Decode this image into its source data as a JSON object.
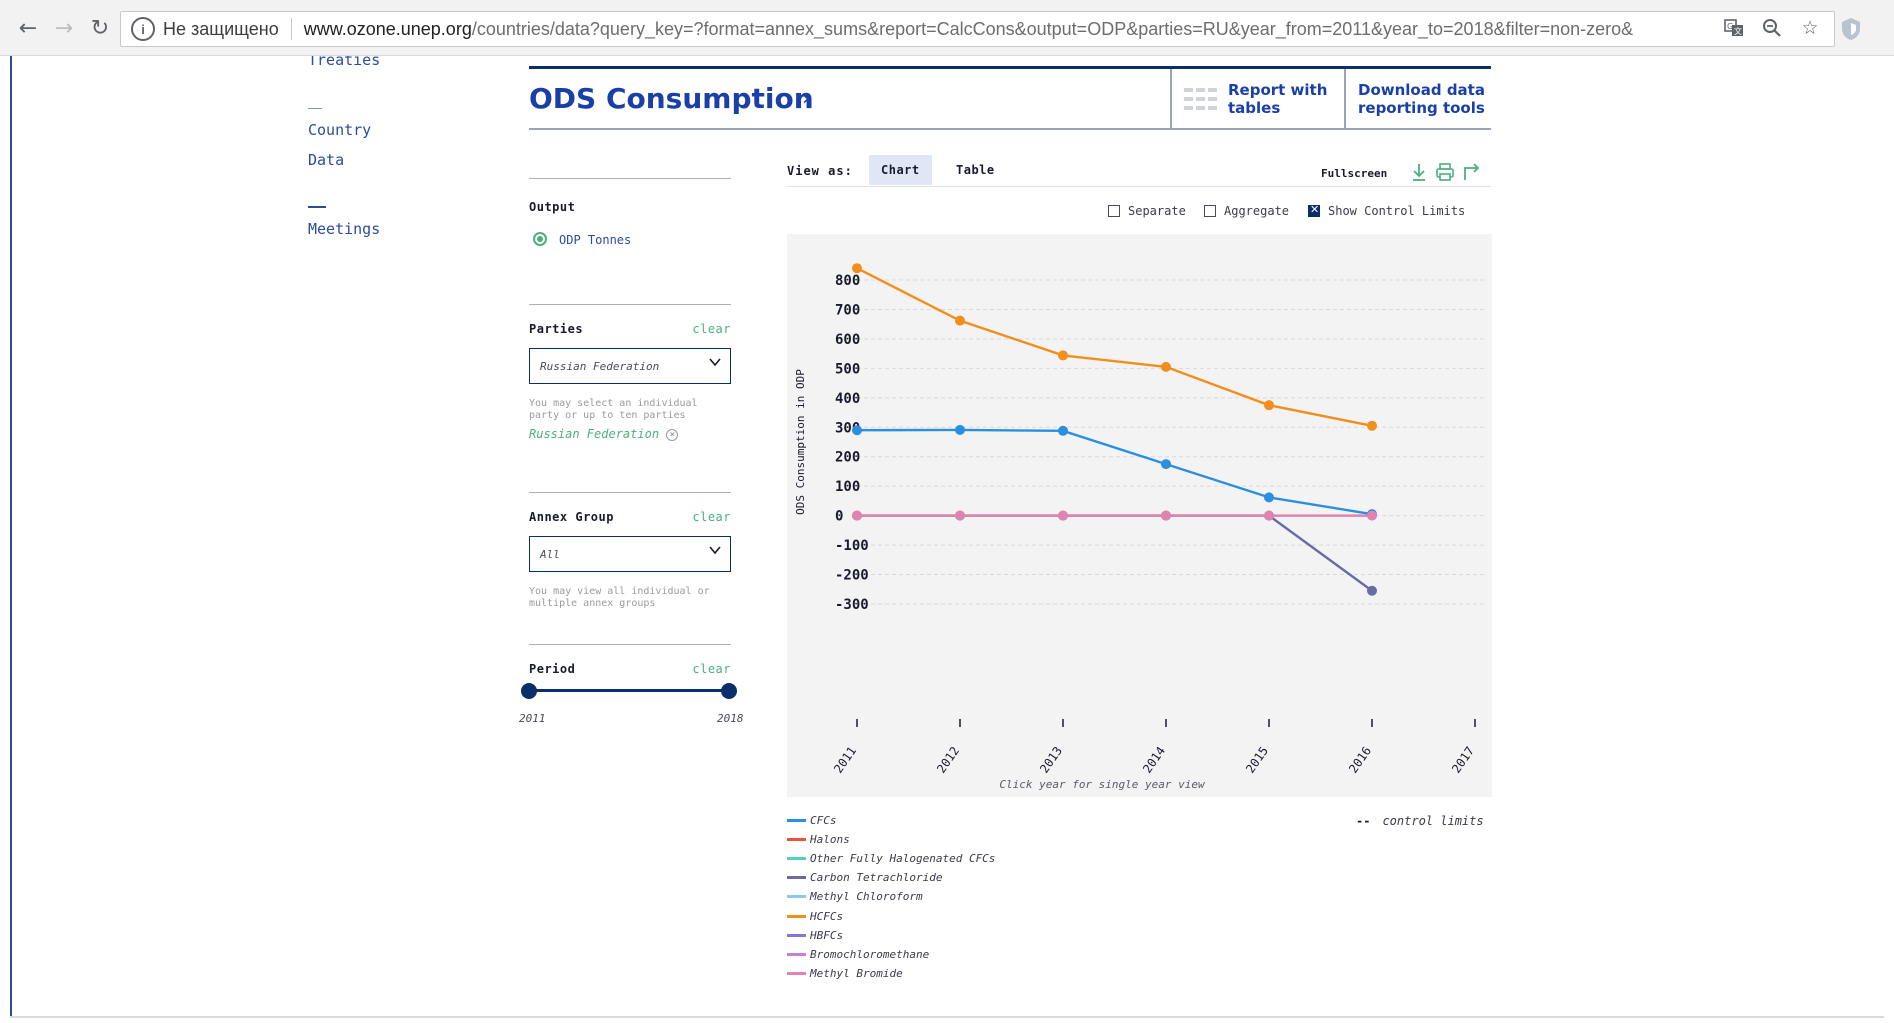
{
  "browser": {
    "security_label": "Не защищено",
    "url_host": "www.ozone.unep.org",
    "url_path": "/countries/data?query_key=?format=annex_sums&report=CalcCons&output=ODP&parties=RU&year_from=2011&year_to=2018&filter=non-zero&"
  },
  "nav": {
    "treaties": "Treaties",
    "country_data_line1": "Country",
    "country_data_line2": "Data",
    "meetings": "Meetings"
  },
  "header": {
    "title": "ODS Consumption",
    "report_tables_line1": "Report with",
    "report_tables_line2": "tables",
    "download_line1": "Download data",
    "download_line2": "reporting tools"
  },
  "filters": {
    "output_label": "Output",
    "output_option": "ODP Tonnes",
    "parties_label": "Parties",
    "parties_clear": "clear",
    "parties_value": "Russian Federation",
    "parties_help": "You may select an individual party or up to ten parties",
    "parties_tag": "Russian Federation",
    "annex_label": "Annex Group",
    "annex_clear": "clear",
    "annex_value": "All",
    "annex_help": "You may view all individual or multiple annex groups",
    "period_label": "Period",
    "period_clear": "clear",
    "period_from": "2011",
    "period_to": "2018"
  },
  "chart_toolbar": {
    "view_as": "View as:",
    "tab_chart": "Chart",
    "tab_table": "Table",
    "fullscreen": "Fullscreen",
    "separate": "Separate",
    "aggregate": "Aggregate",
    "show_control_limits": "Show Control Limits"
  },
  "chart_data": {
    "type": "line",
    "title": "",
    "xlabel": "",
    "ylabel": "ODS Consumption in ODP",
    "note": "Click year for single year view",
    "x": [
      2011,
      2012,
      2013,
      2014,
      2015,
      2016
    ],
    "x_ticks": [
      "2011",
      "2012",
      "2013",
      "2014",
      "2015",
      "2016",
      "2017"
    ],
    "y_ticks": [
      800,
      700,
      600,
      500,
      400,
      300,
      200,
      100,
      0,
      -100,
      -200,
      -300
    ],
    "ylim": [
      -350,
      840
    ],
    "xlim": [
      2011,
      2017
    ],
    "series": [
      {
        "name": "HCFCs",
        "color": "#f28e1c",
        "values": [
          840,
          662,
          544,
          505,
          375,
          305
        ]
      },
      {
        "name": "CFCs",
        "color": "#2b8fe0",
        "values": [
          290,
          291,
          288,
          175,
          62,
          5
        ]
      },
      {
        "name": "Carbon Tetrachloride",
        "color": "#6a6aa6",
        "values": [
          0,
          0,
          0,
          0,
          0,
          -255
        ]
      },
      {
        "name": "Methyl Bromide",
        "color": "#e083b0",
        "values": [
          0,
          0,
          0,
          0,
          0,
          0
        ]
      }
    ]
  },
  "legend": {
    "items": [
      {
        "label": "CFCs",
        "color": "#2b8fe0"
      },
      {
        "label": "Halons",
        "color": "#e8563a"
      },
      {
        "label": "Other Fully Halogenated CFCs",
        "color": "#4fd4b8"
      },
      {
        "label": "Carbon Tetrachloride",
        "color": "#6a6aa6"
      },
      {
        "label": "Methyl Chloroform",
        "color": "#8fc8ef"
      },
      {
        "label": "HCFCs",
        "color": "#f28e1c"
      },
      {
        "label": "HBFCs",
        "color": "#8a72d8"
      },
      {
        "label": "Bromochloromethane",
        "color": "#c77fd6"
      },
      {
        "label": "Methyl Bromide",
        "color": "#e083b0"
      }
    ],
    "control_limits": "control limits",
    "control_limits_marker": "--"
  }
}
